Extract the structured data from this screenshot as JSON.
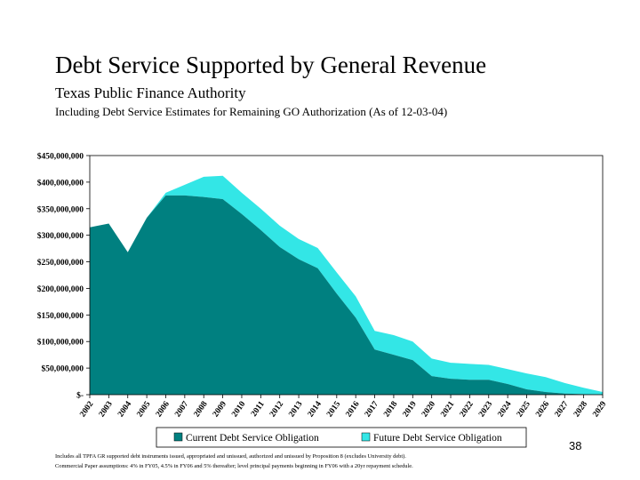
{
  "header": {
    "title": "Debt Service Supported by General Revenue",
    "subtitle": "Texas Public Finance Authority",
    "subtitle2": "Including Debt Service Estimates for Remaining GO Authorization (As of 12-03-04)"
  },
  "slide_number": "38",
  "footnotes": {
    "line1": "Includes all TPFA GR supported debt instruments issued, appropriated and unissued, authorized and unissued by Proposition 8 (excludes University debt).",
    "line2": "Commercial Paper assumptions: 4% in FY05, 4.5% in FY06 and 5% thereafter; level principal payments beginning in FY06 with a 20yr repayment schedule."
  },
  "chart_data": {
    "type": "area",
    "stacked": true,
    "x": [
      "2002",
      "2003",
      "2004",
      "2005",
      "2006",
      "2007",
      "2008",
      "2009",
      "2010",
      "2011",
      "2012",
      "2013",
      "2014",
      "2015",
      "2016",
      "2017",
      "2018",
      "2019",
      "2020",
      "2021",
      "2022",
      "2023",
      "2024",
      "2025",
      "2026",
      "2027",
      "2028",
      "2029"
    ],
    "series": [
      {
        "name": "Current Debt Service Obligation",
        "color": "#008080",
        "values": [
          315000000,
          322000000,
          268000000,
          333000000,
          375000000,
          375000000,
          372000000,
          368000000,
          340000000,
          310000000,
          278000000,
          255000000,
          238000000,
          190000000,
          145000000,
          85000000,
          75000000,
          65000000,
          35000000,
          30000000,
          28000000,
          28000000,
          20000000,
          10000000,
          5000000,
          2000000,
          1000000,
          0
        ]
      },
      {
        "name": "Future Debt Service Obligation",
        "color": "#33e6e6",
        "values": [
          0,
          0,
          0,
          0,
          5000000,
          20000000,
          38000000,
          44000000,
          40000000,
          40000000,
          40000000,
          38000000,
          38000000,
          40000000,
          40000000,
          35000000,
          37000000,
          35000000,
          33000000,
          30000000,
          30000000,
          28000000,
          28000000,
          30000000,
          28000000,
          20000000,
          12000000,
          5000000
        ]
      }
    ],
    "y_ticks": [
      "$450,000,000",
      "$400,000,000",
      "$350,000,000",
      "$300,000,000",
      "$250,000,000",
      "$200,000,000",
      "$150,000,000",
      "$100,000,000",
      "$50,000,000",
      "$-"
    ],
    "ylim": [
      0,
      450000000
    ],
    "y_step": 50000000,
    "legend_position": "bottom",
    "grid": false
  }
}
